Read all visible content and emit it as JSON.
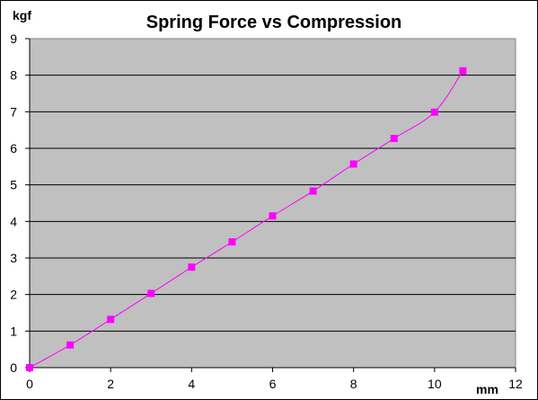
{
  "chart_data": {
    "type": "line",
    "title": "Spring Force vs Compression",
    "xlabel": "mm",
    "ylabel": "kgf",
    "xlim": [
      0,
      12
    ],
    "ylim": [
      0,
      9
    ],
    "x_ticks": [
      0,
      2,
      4,
      6,
      8,
      10,
      12
    ],
    "y_ticks": [
      0,
      1,
      2,
      3,
      4,
      5,
      6,
      7,
      8,
      9
    ],
    "grid": "horizontal",
    "plot_background": "#c0c0c0",
    "series": [
      {
        "color": "#ff00ff",
        "marker": "square",
        "x": [
          0,
          1,
          2,
          3,
          4,
          5,
          6,
          7,
          8,
          9,
          10,
          10.7
        ],
        "y": [
          0,
          0.62,
          1.32,
          2.03,
          2.75,
          3.44,
          4.15,
          4.83,
          5.57,
          6.27,
          6.99,
          8.12
        ]
      }
    ]
  }
}
